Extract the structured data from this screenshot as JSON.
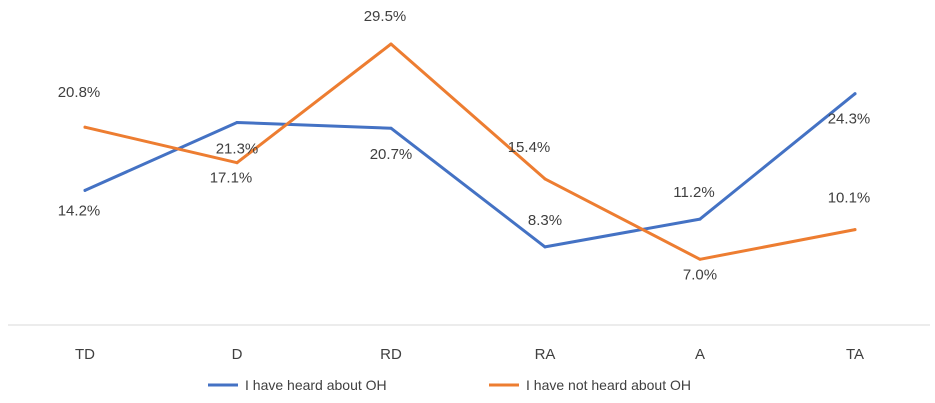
{
  "chart_data": {
    "type": "line",
    "categories": [
      "TD",
      "D",
      "RD",
      "RA",
      "A",
      "TA"
    ],
    "series": [
      {
        "name": "I have heard about OH",
        "values": [
          14.2,
          21.3,
          20.7,
          8.3,
          11.2,
          24.3
        ],
        "labels": [
          "14.2%",
          "21.3%",
          "20.7%",
          "8.3%",
          "11.2%",
          "24.3%"
        ],
        "color": "#4472C4"
      },
      {
        "name": "I have not heard about OH",
        "values": [
          20.8,
          17.1,
          29.5,
          15.4,
          7.0,
          10.1
        ],
        "labels": [
          "20.8%",
          "17.1%",
          "29.5%",
          "15.4%",
          "7.0%",
          "10.1%"
        ],
        "color": "#ED7D31"
      }
    ],
    "legend_position": "bottom",
    "grid": false
  }
}
